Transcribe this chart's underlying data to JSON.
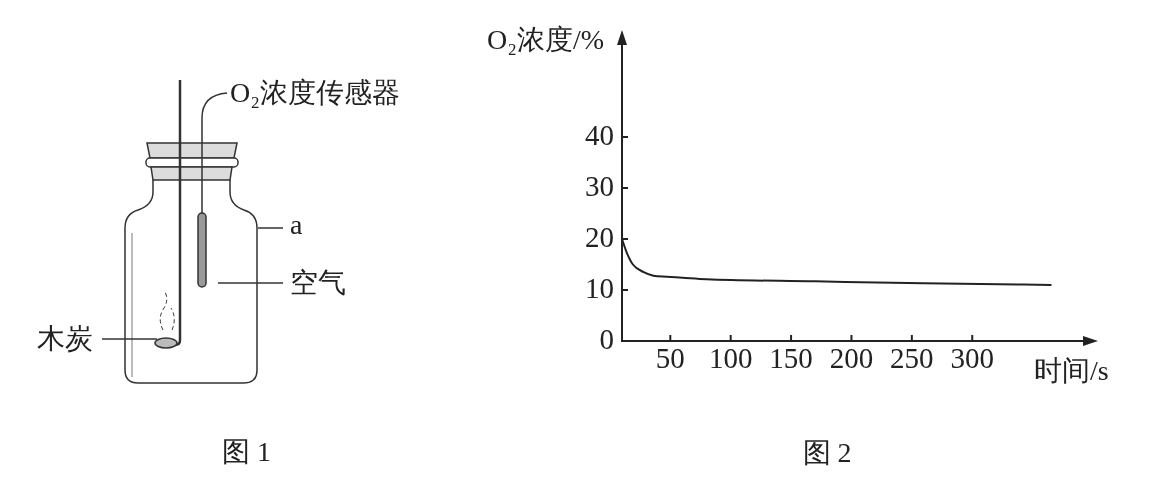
{
  "chart_data": {
    "type": "line",
    "title": "图 2",
    "xlabel": "时间/s",
    "ylabel": "O₂浓度/%",
    "annotations": [
      "O₂浓度传感器",
      "a",
      "空气",
      "木炭",
      "图 1"
    ],
    "x": [
      10,
      14,
      19,
      28,
      36,
      47,
      60,
      80,
      170,
      260,
      365
    ],
    "values": [
      20,
      17.3,
      15.0,
      13.5,
      12.8,
      12.6,
      12.4,
      12.1,
      11.7,
      11.3,
      11.0
    ],
    "color": "#222222",
    "xlim": [
      10,
      400
    ],
    "xticks": [
      50,
      100,
      150,
      200,
      250,
      300
    ],
    "ylim": [
      0,
      60
    ],
    "yticks": [
      0,
      10,
      20,
      30,
      40
    ]
  }
}
